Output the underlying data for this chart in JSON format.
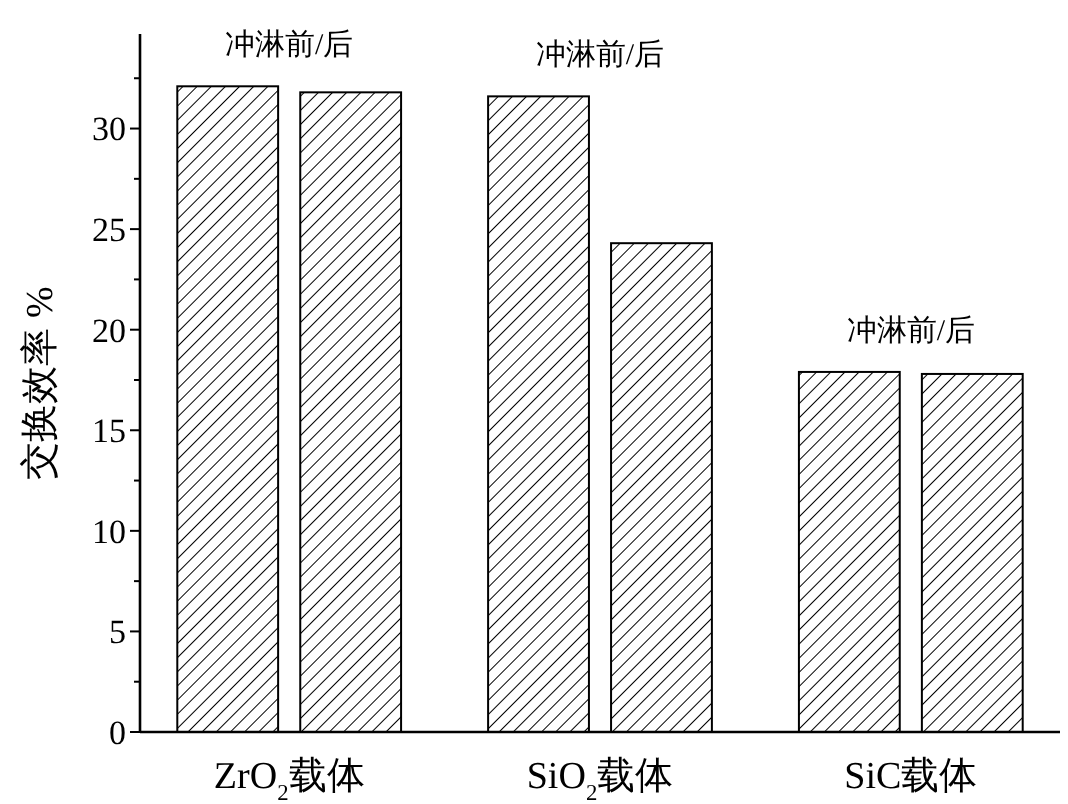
{
  "chart_data": {
    "type": "bar",
    "ylabel": "交换效率 %",
    "categories": [
      "ZrO$_{2}$载体",
      "SiO$_{2}$载体",
      "SiC载体"
    ],
    "series": [
      {
        "color": "#000000",
        "values": [
          32.1,
          31.6,
          17.9
        ]
      },
      {
        "color": "#000000",
        "values": [
          31.8,
          24.3,
          17.8
        ]
      }
    ],
    "ylim": [
      0,
      34.7
    ],
    "yticks": [
      0,
      {
        "value": 2.5,
        "label": null
      },
      5,
      {
        "value": 7.5,
        "label": null
      },
      10,
      {
        "value": 12.5,
        "label": null
      },
      15,
      {
        "value": 17.5,
        "label": null
      },
      20,
      {
        "value": 22.5,
        "label": null
      },
      25,
      {
        "value": 27.5,
        "label": null
      },
      30,
      {
        "value": 32.5,
        "label": null
      }
    ],
    "annotations": [
      "冲淋前/后",
      "冲淋前/后",
      "冲淋前/后"
    ],
    "grid": false
  }
}
